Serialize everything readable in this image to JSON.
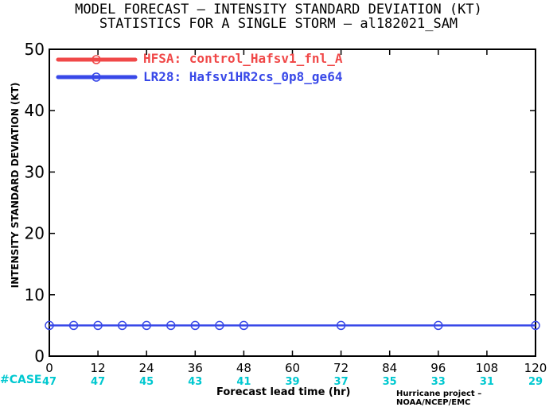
{
  "title_line1": "MODEL FORECAST – INTENSITY STANDARD DEVIATION (KT)",
  "title_line2": "STATISTICS FOR A SINGLE STORM – al182021_SAM",
  "credit": "Hurricane project – NOAA/NCEP/EMC",
  "case_label": "#CASE",
  "colors": {
    "hfsa": "#f04848",
    "lr28": "#3848e8",
    "cases": "#00c8d0"
  },
  "chart_data": {
    "type": "line",
    "title": "MODEL FORECAST – INTENSITY STANDARD DEVIATION (KT)",
    "subtitle": "STATISTICS FOR A SINGLE STORM – al182021_SAM",
    "xlabel": "Forecast lead time (hr)",
    "ylabel": "INTENSITY STANDARD DEVIATION (KT)",
    "xlim": [
      0,
      120
    ],
    "ylim": [
      0,
      50
    ],
    "xticks": [
      "0",
      "12",
      "24",
      "36",
      "48",
      "60",
      "72",
      "84",
      "96",
      "108",
      "120"
    ],
    "yticks": [
      "0",
      "10",
      "20",
      "30",
      "40",
      "50"
    ],
    "legend_position": "top-left",
    "series": [
      {
        "name": "HFSA: control_Hafsv1_fnl_A",
        "x": [],
        "y": []
      },
      {
        "name": "LR28: Hafsv1HR2cs_0p8_ge64",
        "x": [
          0,
          6,
          12,
          18,
          24,
          30,
          36,
          42,
          48,
          72,
          96,
          120
        ],
        "y": [
          5,
          5,
          5,
          5,
          5,
          5,
          5,
          5,
          5,
          5,
          5,
          5
        ]
      }
    ],
    "cases": {
      "x": [
        0,
        12,
        24,
        36,
        48,
        60,
        72,
        84,
        96,
        108,
        120
      ],
      "values": [
        "47",
        "47",
        "45",
        "43",
        "41",
        "39",
        "37",
        "35",
        "33",
        "31",
        "29"
      ]
    }
  }
}
